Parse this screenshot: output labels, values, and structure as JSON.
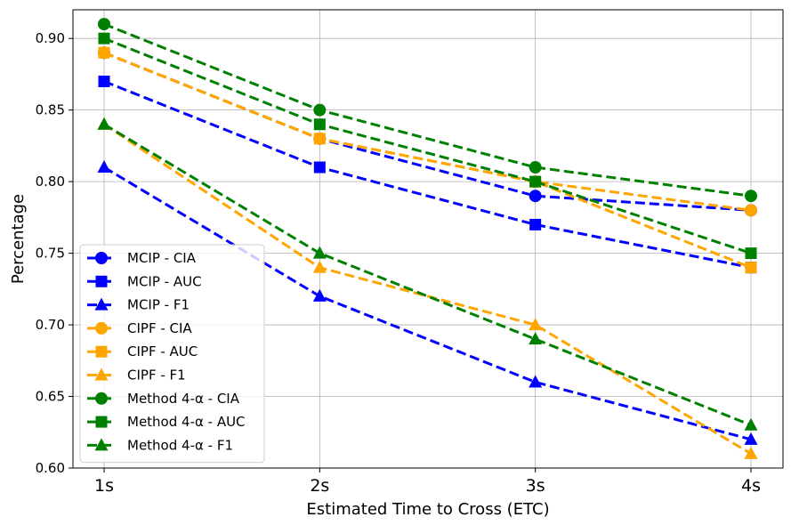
{
  "chart_data": {
    "type": "line",
    "title": "",
    "xlabel": "Estimated Time to Cross (ETC)",
    "ylabel": "Percentage",
    "categories": [
      "1s",
      "2s",
      "3s",
      "4s"
    ],
    "ylim": [
      0.6,
      0.92
    ],
    "yticks": [
      0.6,
      0.65,
      0.7,
      0.75,
      0.8,
      0.85,
      0.9
    ],
    "ytick_labels": [
      "0.60",
      "0.65",
      "0.70",
      "0.75",
      "0.80",
      "0.85",
      "0.90"
    ],
    "grid": true,
    "legend_position": "lower-left",
    "series": [
      {
        "name": "MCIP - CIA",
        "color": "#0000ff",
        "marker": "circle",
        "values": [
          0.89,
          0.83,
          0.79,
          0.78
        ]
      },
      {
        "name": "MCIP - AUC",
        "color": "#0000ff",
        "marker": "square",
        "values": [
          0.87,
          0.81,
          0.77,
          0.74
        ]
      },
      {
        "name": "MCIP - F1",
        "color": "#0000ff",
        "marker": "triangle",
        "values": [
          0.81,
          0.72,
          0.66,
          0.62
        ]
      },
      {
        "name": "CIPF - CIA",
        "color": "#ffa500",
        "marker": "circle",
        "values": [
          0.89,
          0.83,
          0.8,
          0.78
        ]
      },
      {
        "name": "CIPF - AUC",
        "color": "#ffa500",
        "marker": "square",
        "values": [
          0.89,
          0.83,
          0.8,
          0.74
        ]
      },
      {
        "name": "CIPF - F1",
        "color": "#ffa500",
        "marker": "triangle",
        "values": [
          0.84,
          0.74,
          0.7,
          0.61
        ]
      },
      {
        "name": "Method 4-α - CIA",
        "color": "#008000",
        "marker": "circle",
        "values": [
          0.91,
          0.85,
          0.81,
          0.79
        ]
      },
      {
        "name": "Method 4-α - AUC",
        "color": "#008000",
        "marker": "square",
        "values": [
          0.9,
          0.84,
          0.8,
          0.75
        ]
      },
      {
        "name": "Method 4-α - F1",
        "color": "#008000",
        "marker": "triangle",
        "values": [
          0.84,
          0.75,
          0.69,
          0.63
        ]
      }
    ]
  }
}
